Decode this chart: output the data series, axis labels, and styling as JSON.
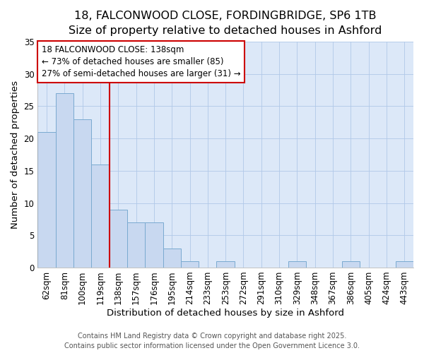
{
  "title_line1": "18, FALCONWOOD CLOSE, FORDINGBRIDGE, SP6 1TB",
  "title_line2": "Size of property relative to detached houses in Ashford",
  "xlabel": "Distribution of detached houses by size in Ashford",
  "ylabel": "Number of detached properties",
  "categories": [
    "62sqm",
    "81sqm",
    "100sqm",
    "119sqm",
    "138sqm",
    "157sqm",
    "176sqm",
    "195sqm",
    "214sqm",
    "233sqm",
    "253sqm",
    "272sqm",
    "291sqm",
    "310sqm",
    "329sqm",
    "348sqm",
    "367sqm",
    "386sqm",
    "405sqm",
    "424sqm",
    "443sqm"
  ],
  "values": [
    21,
    27,
    23,
    16,
    9,
    7,
    7,
    3,
    1,
    0,
    1,
    0,
    0,
    0,
    1,
    0,
    0,
    1,
    0,
    0,
    1
  ],
  "bar_color": "#c8d8f0",
  "bar_edge_color": "#7aaad0",
  "ref_line_color": "#cc0000",
  "annotation_line1": "18 FALCONWOOD CLOSE: 138sqm",
  "annotation_line2": "← 73% of detached houses are smaller (85)",
  "annotation_line3": "27% of semi-detached houses are larger (31) →",
  "annotation_box_color": "#ffffff",
  "annotation_box_edge": "#cc0000",
  "ylim": [
    0,
    35
  ],
  "yticks": [
    0,
    5,
    10,
    15,
    20,
    25,
    30,
    35
  ],
  "plot_bg_color": "#dce8f8",
  "fig_bg_color": "#ffffff",
  "grid_color": "#b0c8e8",
  "footer_text": "Contains HM Land Registry data © Crown copyright and database right 2025.\nContains public sector information licensed under the Open Government Licence 3.0.",
  "title1_fontsize": 11.5,
  "title2_fontsize": 10.5,
  "axis_label_fontsize": 9.5,
  "tick_fontsize": 8.5,
  "annotation_fontsize": 8.5,
  "footer_fontsize": 7
}
